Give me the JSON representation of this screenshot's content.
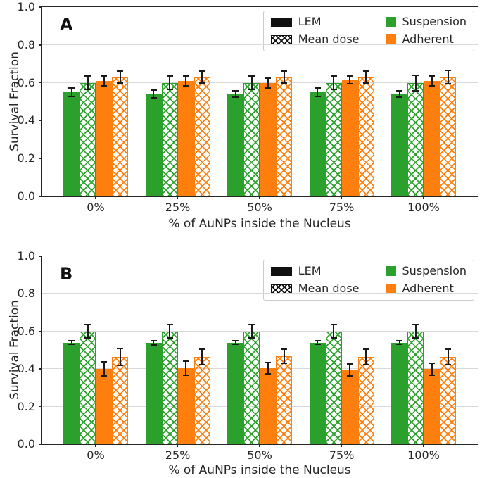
{
  "figure": {
    "ylabel": "Survival Fraction",
    "xlabel": "% of AuNPs inside the Nucleus"
  },
  "panels": [
    {
      "letter": "A"
    },
    {
      "letter": "B"
    }
  ],
  "legend": {
    "items": [
      {
        "label": "LEM",
        "swatch": "black-solid-bar"
      },
      {
        "label": "Mean dose",
        "swatch": "black-crosshatch-bar"
      },
      {
        "label": "Suspension",
        "swatch": "green-square"
      },
      {
        "label": "Adherent",
        "swatch": "orange-square"
      }
    ],
    "position": "upper right"
  },
  "colors": {
    "suspension_green": "#2ca02c",
    "adherent_orange": "#ff7f0e",
    "axis": "#262626",
    "grid": "#d9d9d9",
    "error_bar": "#1a1a1a"
  },
  "chart_data": [
    {
      "type": "bar",
      "panel": "A",
      "title": "",
      "xlabel": "% of AuNPs inside the Nucleus",
      "ylabel": "Survival Fraction",
      "ylim": [
        0.0,
        1.0
      ],
      "ytick_values": [
        0.0,
        0.2,
        0.4,
        0.6,
        0.8,
        1.0
      ],
      "ytick_labels": [
        "0.0",
        "0.2",
        "0.4",
        "0.6",
        "0.8",
        "1.0"
      ],
      "categories": [
        "0%",
        "25%",
        "50%",
        "75%",
        "100%"
      ],
      "grid": true,
      "legend_position": "upper right",
      "series": [
        {
          "name": "LEM Suspension",
          "key": "lem-suspension",
          "style": "solid",
          "color": "#2ca02c",
          "values": [
            0.55,
            0.54,
            0.54,
            0.55,
            0.54
          ],
          "errors": [
            0.025,
            0.025,
            0.02,
            0.025,
            0.02
          ]
        },
        {
          "name": "Mean dose Suspension",
          "key": "meandose-suspension",
          "style": "hatched",
          "color": "#2ca02c",
          "values": [
            0.6,
            0.6,
            0.6,
            0.6,
            0.6
          ],
          "errors": [
            0.04,
            0.04,
            0.04,
            0.04,
            0.045
          ]
        },
        {
          "name": "LEM Adherent",
          "key": "lem-adherent",
          "style": "solid",
          "color": "#ff7f0e",
          "values": [
            0.61,
            0.61,
            0.6,
            0.615,
            0.61
          ],
          "errors": [
            0.03,
            0.03,
            0.03,
            0.025,
            0.03
          ]
        },
        {
          "name": "Mean dose Adherent",
          "key": "meandose-adherent",
          "style": "hatched",
          "color": "#ff7f0e",
          "values": [
            0.63,
            0.63,
            0.63,
            0.63,
            0.63
          ],
          "errors": [
            0.035,
            0.035,
            0.035,
            0.035,
            0.04
          ]
        }
      ]
    },
    {
      "type": "bar",
      "panel": "B",
      "title": "",
      "xlabel": "% of AuNPs inside the Nucleus",
      "ylabel": "Survival Fraction",
      "ylim": [
        0.0,
        1.0
      ],
      "ytick_values": [
        0.0,
        0.2,
        0.4,
        0.6,
        0.8,
        1.0
      ],
      "ytick_labels": [
        "0.0",
        "0.2",
        "0.4",
        "0.6",
        "0.8",
        "1.0"
      ],
      "categories": [
        "0%",
        "25%",
        "50%",
        "75%",
        "100%"
      ],
      "grid": true,
      "legend_position": "upper right",
      "series": [
        {
          "name": "LEM Suspension",
          "key": "lem-suspension",
          "style": "solid",
          "color": "#2ca02c",
          "values": [
            0.54,
            0.54,
            0.54,
            0.54,
            0.54
          ],
          "errors": [
            0.013,
            0.015,
            0.013,
            0.013,
            0.013
          ]
        },
        {
          "name": "Mean dose Suspension",
          "key": "meandose-suspension",
          "style": "hatched",
          "color": "#2ca02c",
          "values": [
            0.6,
            0.6,
            0.6,
            0.6,
            0.6
          ],
          "errors": [
            0.04,
            0.04,
            0.04,
            0.04,
            0.04
          ]
        },
        {
          "name": "LEM Adherent",
          "key": "lem-adherent",
          "style": "solid",
          "color": "#ff7f0e",
          "values": [
            0.4,
            0.405,
            0.405,
            0.395,
            0.4
          ],
          "errors": [
            0.042,
            0.04,
            0.035,
            0.035,
            0.035
          ]
        },
        {
          "name": "Mean dose Adherent",
          "key": "meandose-adherent",
          "style": "hatched",
          "color": "#ff7f0e",
          "values": [
            0.465,
            0.465,
            0.468,
            0.465,
            0.465
          ],
          "errors": [
            0.048,
            0.045,
            0.04,
            0.045,
            0.045
          ]
        }
      ]
    }
  ]
}
